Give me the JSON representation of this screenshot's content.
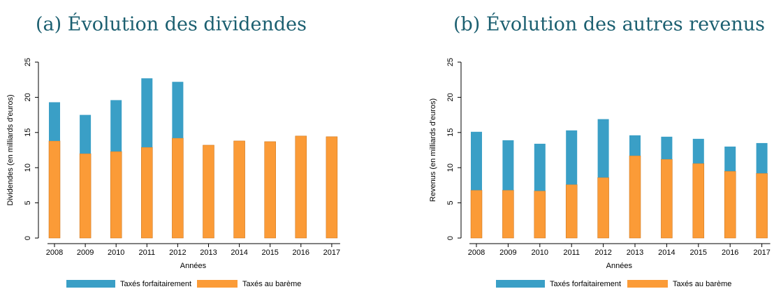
{
  "chart_data": [
    {
      "type": "stacked_bar",
      "title": "(a) Évolution des dividendes",
      "xlabel": "Années",
      "ylabel": "Dividendes (en milliards d'euros)",
      "categories": [
        "2008",
        "2009",
        "2010",
        "2011",
        "2012",
        "2013",
        "2014",
        "2015",
        "2016",
        "2017"
      ],
      "series": [
        {
          "name": "Taxés forfaitairement",
          "color": "#3a9fc6",
          "values": [
            5.5,
            5.5,
            7.3,
            9.8,
            8.0,
            0,
            0,
            0,
            0,
            0
          ]
        },
        {
          "name": "Taxés au barème",
          "color": "#fb9b37",
          "values": [
            13.8,
            12.0,
            12.3,
            12.9,
            14.2,
            13.2,
            13.8,
            13.7,
            14.5,
            14.4
          ]
        }
      ],
      "ylim": [
        0,
        25
      ],
      "yticks": [
        0,
        5,
        10,
        15,
        20,
        25
      ],
      "grid": false
    },
    {
      "type": "stacked_bar",
      "title": "(b) Évolution des autres revenus",
      "xlabel": "Années",
      "ylabel": "Revenus (en milliards d'euros)",
      "categories": [
        "2008",
        "2009",
        "2010",
        "2011",
        "2012",
        "2013",
        "2014",
        "2015",
        "2016",
        "2017"
      ],
      "series": [
        {
          "name": "Taxés forfaitairement",
          "color": "#3a9fc6",
          "values": [
            8.3,
            7.1,
            6.7,
            7.7,
            8.3,
            2.9,
            3.2,
            3.5,
            3.5,
            4.3
          ]
        },
        {
          "name": "Taxés au barème",
          "color": "#fb9b37",
          "values": [
            6.8,
            6.8,
            6.7,
            7.6,
            8.6,
            11.7,
            11.2,
            10.6,
            9.5,
            9.2
          ]
        }
      ],
      "ylim": [
        0,
        25
      ],
      "yticks": [
        0,
        5,
        10,
        15,
        20,
        25
      ],
      "grid": false
    }
  ]
}
